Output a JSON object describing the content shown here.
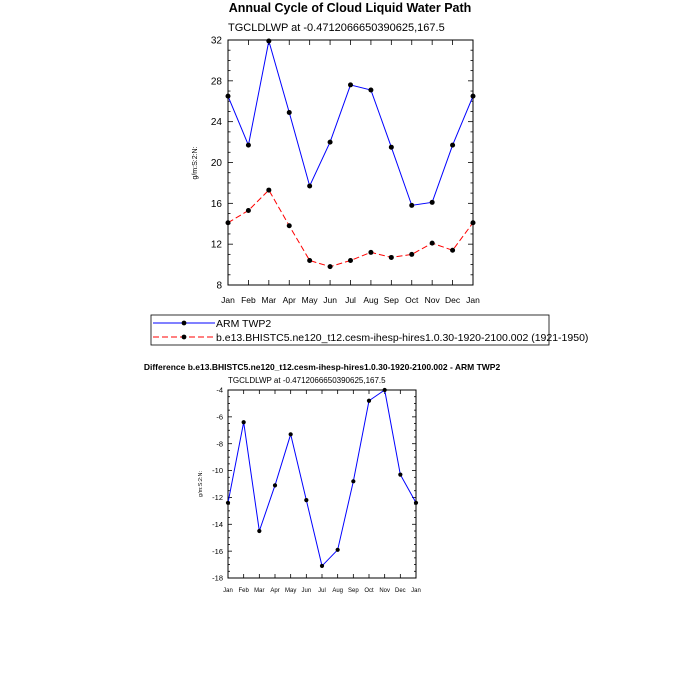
{
  "chart_data": [
    {
      "type": "line",
      "title": "Annual Cycle of Cloud Liquid Water Path",
      "subtitle": "TGCLDLWP at -0.4712066650390625,167.5",
      "xlabel": "",
      "ylabel": "g/m:S:2:N:",
      "categories": [
        "Jan",
        "Feb",
        "Mar",
        "Apr",
        "May",
        "Jun",
        "Jul",
        "Aug",
        "Sep",
        "Oct",
        "Nov",
        "Dec",
        "Jan"
      ],
      "ylim": [
        8,
        32
      ],
      "yticks": [
        8,
        12,
        16,
        20,
        24,
        28,
        32
      ],
      "yticks_label": [
        "8",
        "12",
        "16",
        "20",
        "24",
        "28",
        "32"
      ],
      "series": [
        {
          "name": "ARM TWP2",
          "color": "#0000ff",
          "dash": "solid",
          "values": [
            26.5,
            21.7,
            31.9,
            24.9,
            17.7,
            22.0,
            27.6,
            27.1,
            21.5,
            15.8,
            16.1,
            21.7,
            26.5
          ]
        },
        {
          "name": "b.e13.BHISTC5.ne120_t12.cesm-ihesp-hires1.0.30-1920-2100.002 (1921-1950)",
          "color": "#ff0000",
          "dash": "dashed",
          "values": [
            14.1,
            15.3,
            17.3,
            13.8,
            10.4,
            9.8,
            10.4,
            11.2,
            10.7,
            11.0,
            12.1,
            11.4,
            14.1
          ]
        }
      ],
      "legend": "bottom"
    },
    {
      "type": "line",
      "title": "Difference b.e13.BHISTC5.ne120_t12.cesm-ihesp-hires1.0.30-1920-2100.002 - ARM TWP2",
      "subtitle": "TGCLDLWP at -0.4712066650390625,167.5",
      "xlabel": "",
      "ylabel": "g/m:S:2:N:",
      "categories": [
        "Jan",
        "Feb",
        "Mar",
        "Apr",
        "May",
        "Jun",
        "Jul",
        "Aug",
        "Sep",
        "Oct",
        "Nov",
        "Dec",
        "Jan"
      ],
      "ylim": [
        -18,
        -4
      ],
      "yticks": [
        -18,
        -16,
        -14,
        -12,
        -10,
        -8,
        -6,
        -4
      ],
      "yticks_label": [
        "-18",
        "-16",
        "-14",
        "-12",
        "-10",
        "-8",
        "-6",
        "-4"
      ],
      "series": [
        {
          "name": "Difference",
          "color": "#0000ff",
          "dash": "solid",
          "values": [
            -12.4,
            -6.4,
            -14.5,
            -11.1,
            -7.3,
            -12.2,
            -17.1,
            -15.9,
            -10.8,
            -4.8,
            -4.0,
            -10.3,
            -12.4
          ]
        }
      ]
    }
  ]
}
